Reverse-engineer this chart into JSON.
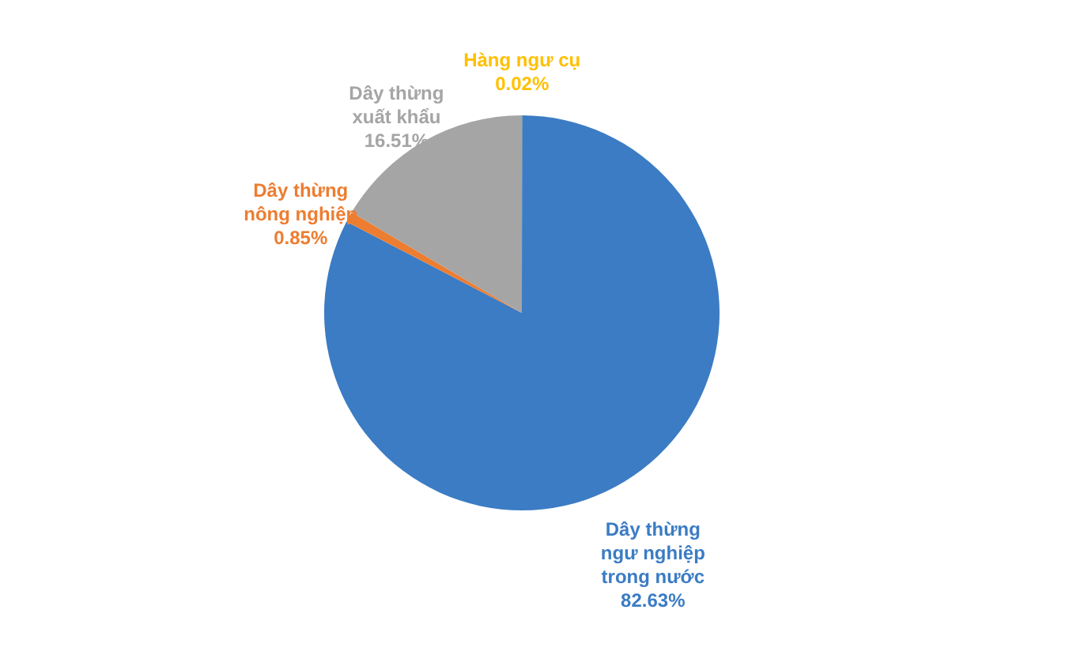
{
  "chart_data": {
    "type": "pie",
    "categories": [
      "Hàng ngư cụ",
      "Dây thừng ngư nghiệp trong nước",
      "Dây thừng nông nghiệp",
      "Dây thừng xuất khẩu"
    ],
    "values": [
      0.02,
      82.63,
      0.85,
      16.51
    ],
    "colors": [
      "#ffc000",
      "#3b7cc4",
      "#ed7d31",
      "#a5a5a5"
    ],
    "value_labels": [
      "0.02%",
      "82.63%",
      "0.85%",
      "16.51%"
    ]
  }
}
